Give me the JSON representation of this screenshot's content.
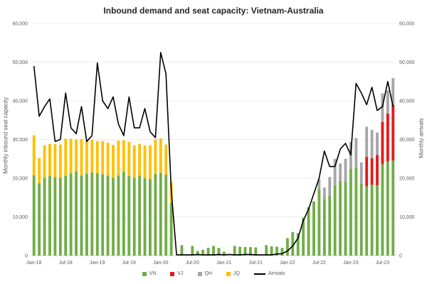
{
  "chart_data": {
    "type": "bar+line",
    "title": "Inbound demand and seat capacity: Vietnam-Australia",
    "ylabel_left": "Monthly inbound seat capacity",
    "ylabel_right": "Monthly arrivals",
    "ylim": [
      0,
      60000
    ],
    "yticks": [
      "0",
      "10,000",
      "20,000",
      "30,000",
      "40,000",
      "50,000",
      "60,000"
    ],
    "x_tick_labels": [
      {
        "index": 0,
        "label": "Jan-18"
      },
      {
        "index": 6,
        "label": "Jul-18"
      },
      {
        "index": 12,
        "label": "Jan-19"
      },
      {
        "index": 18,
        "label": "Jul-19"
      },
      {
        "index": 24,
        "label": "Jan-20"
      },
      {
        "index": 30,
        "label": "Jul-20"
      },
      {
        "index": 36,
        "label": "Jan-21"
      },
      {
        "index": 42,
        "label": "Jul-21"
      },
      {
        "index": 48,
        "label": "Jan-22"
      },
      {
        "index": 54,
        "label": "Jul-22"
      },
      {
        "index": 60,
        "label": "Jan-23"
      },
      {
        "index": 66,
        "label": "Jul-23"
      }
    ],
    "months": 69,
    "colors": {
      "VN": "#70ad47",
      "VJ": "#e31a1c",
      "QH": "#a6a6a6",
      "JQ": "#ffc000",
      "Arrivals": "#000000"
    },
    "series": [
      {
        "name": "VN",
        "kind": "bar",
        "values": [
          20800,
          18700,
          20100,
          20600,
          20300,
          20100,
          20600,
          21200,
          21800,
          20700,
          21100,
          21500,
          21300,
          21000,
          20700,
          20100,
          20700,
          21700,
          20600,
          20100,
          20700,
          20000,
          19800,
          21100,
          21400,
          20900,
          13600,
          0,
          2700,
          0,
          2500,
          1200,
          1500,
          2000,
          2500,
          2000,
          1000,
          0,
          2500,
          2300,
          2200,
          2200,
          2100,
          0,
          2700,
          2400,
          2300,
          2000,
          4500,
          6100,
          5800,
          9800,
          12500,
          14000,
          17200,
          14600,
          15500,
          18200,
          19300,
          19000,
          22400,
          22800,
          18600,
          17900,
          18300,
          18200,
          23600,
          24400,
          24600
        ]
      },
      {
        "name": "VJ",
        "kind": "bar",
        "values": [
          0,
          0,
          0,
          0,
          0,
          0,
          0,
          0,
          0,
          0,
          0,
          0,
          0,
          0,
          0,
          0,
          0,
          0,
          0,
          0,
          0,
          0,
          0,
          0,
          0,
          0,
          0,
          0,
          0,
          0,
          0,
          0,
          0,
          0,
          0,
          0,
          0,
          0,
          0,
          0,
          0,
          0,
          0,
          0,
          0,
          0,
          0,
          0,
          0,
          0,
          0,
          0,
          0,
          0,
          0,
          0,
          0,
          0,
          0,
          0,
          0,
          0,
          0,
          7600,
          6900,
          7800,
          10900,
          12300,
          14300
        ]
      },
      {
        "name": "QH",
        "kind": "bar",
        "values": [
          0,
          0,
          0,
          0,
          0,
          0,
          0,
          0,
          0,
          0,
          0,
          0,
          0,
          0,
          0,
          0,
          0,
          0,
          0,
          0,
          0,
          0,
          0,
          0,
          0,
          0,
          0,
          0,
          0,
          0,
          0,
          0,
          0,
          0,
          0,
          0,
          0,
          0,
          0,
          0,
          0,
          0,
          0,
          0,
          0,
          0,
          0,
          0,
          0,
          0,
          0,
          0,
          0,
          0,
          2500,
          3000,
          4800,
          6800,
          4500,
          6000,
          7000,
          7600,
          5500,
          7800,
          7300,
          5800,
          7400,
          6000,
          7000
        ]
      },
      {
        "name": "JQ",
        "kind": "bar",
        "values": [
          10300,
          6500,
          8400,
          8300,
          8500,
          8600,
          9600,
          9000,
          8200,
          9400,
          8800,
          8400,
          8300,
          8600,
          8500,
          8500,
          9000,
          8100,
          8800,
          8400,
          8200,
          8500,
          8700,
          9000,
          8900,
          7800,
          5400,
          0,
          0,
          0,
          0,
          0,
          0,
          0,
          0,
          0,
          0,
          0,
          0,
          0,
          0,
          0,
          0,
          0,
          0,
          0,
          0,
          0,
          0,
          0,
          0,
          0,
          0,
          0,
          0,
          0,
          0,
          0,
          0,
          0,
          0,
          0,
          0,
          0,
          0,
          0,
          0,
          0,
          0
        ]
      },
      {
        "name": "Arrivals",
        "kind": "line",
        "values": [
          49000,
          36000,
          38500,
          40500,
          29500,
          30000,
          42000,
          33000,
          31500,
          38500,
          29500,
          31000,
          49800,
          40000,
          38000,
          41000,
          34000,
          31000,
          41000,
          33000,
          33000,
          38000,
          32000,
          30500,
          52500,
          47000,
          17000,
          200,
          200,
          200,
          200,
          300,
          200,
          200,
          200,
          300,
          200,
          300,
          200,
          200,
          300,
          300,
          200,
          200,
          200,
          200,
          400,
          500,
          1200,
          2500,
          4500,
          9000,
          12000,
          16000,
          20000,
          27000,
          23000,
          23000,
          27500,
          29000,
          26000,
          44500,
          42000,
          39000,
          43500,
          37500,
          38500,
          45000,
          38500
        ]
      }
    ]
  },
  "legend": [
    {
      "key": "VN",
      "label": "VN",
      "type": "swatch"
    },
    {
      "key": "VJ",
      "label": "VJ",
      "type": "swatch"
    },
    {
      "key": "QH",
      "label": "QH",
      "type": "swatch"
    },
    {
      "key": "JQ",
      "label": "JQ",
      "type": "swatch"
    },
    {
      "key": "Arrivals",
      "label": "Arrivals",
      "type": "line"
    }
  ]
}
